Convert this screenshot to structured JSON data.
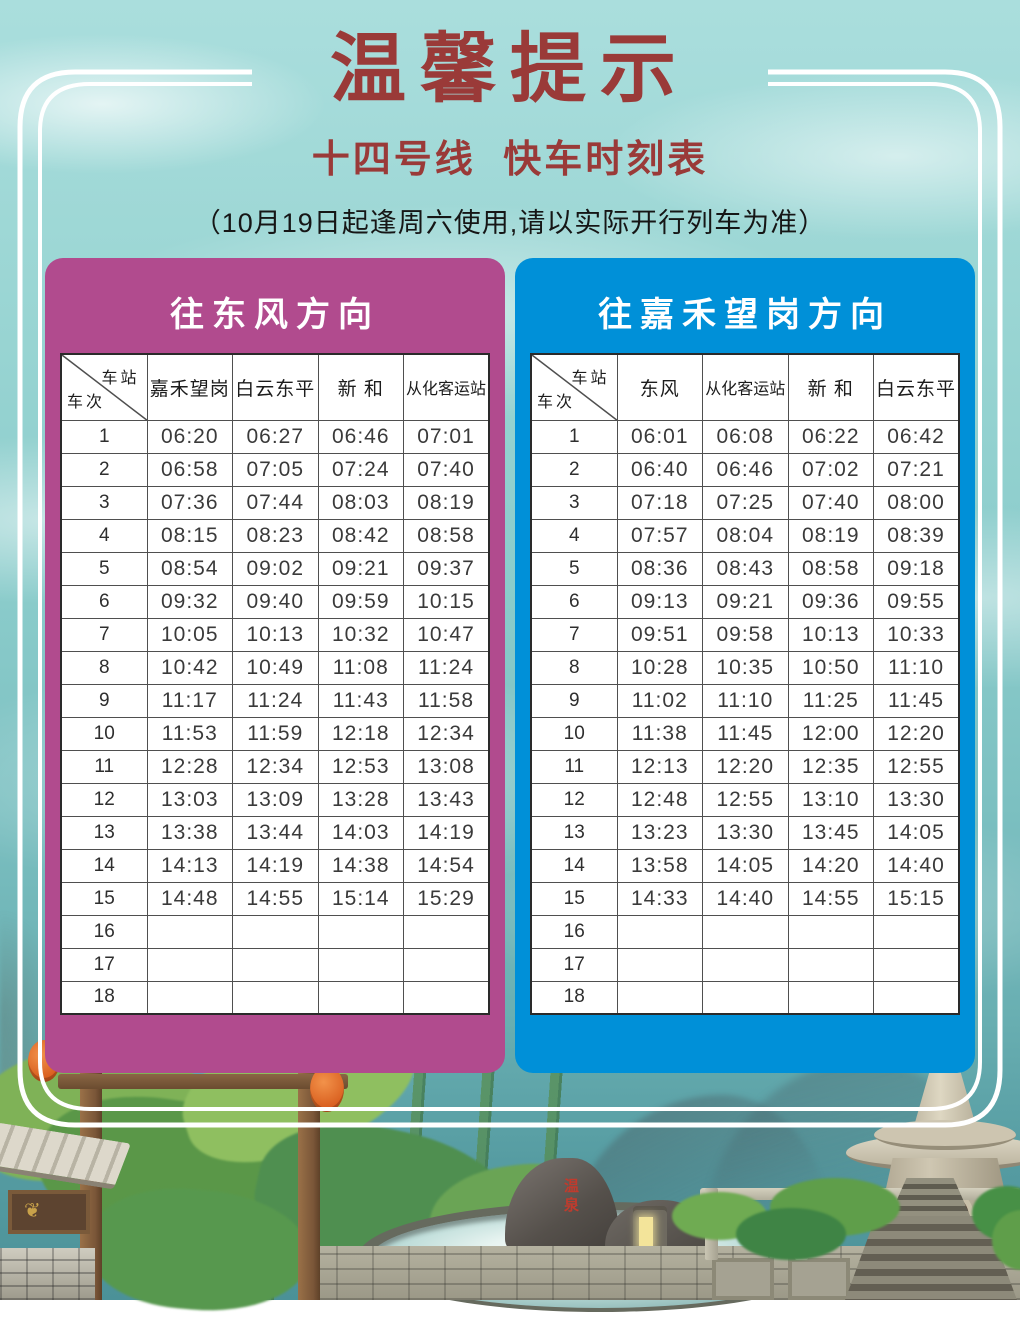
{
  "title": "温馨提示",
  "subtitle": "十四号线 快车时刻表",
  "note": "（10月19日起逢周六使用,请以实际开行列车为准）",
  "colors": {
    "title_red": "#9a3a38",
    "left_panel": "#b14b8e",
    "right_panel": "#0090d8",
    "sky": "#8bcccb"
  },
  "corner_header": {
    "top": "车站",
    "bottom": "车次"
  },
  "illustration": {
    "rock_text": "温泉"
  },
  "tables": [
    {
      "direction": "往东风方向",
      "stations": [
        "嘉禾望岗",
        "白云东平",
        "新 和",
        "从化客运站"
      ],
      "rows": [
        [
          "1",
          "06:20",
          "06:27",
          "06:46",
          "07:01"
        ],
        [
          "2",
          "06:58",
          "07:05",
          "07:24",
          "07:40"
        ],
        [
          "3",
          "07:36",
          "07:44",
          "08:03",
          "08:19"
        ],
        [
          "4",
          "08:15",
          "08:23",
          "08:42",
          "08:58"
        ],
        [
          "5",
          "08:54",
          "09:02",
          "09:21",
          "09:37"
        ],
        [
          "6",
          "09:32",
          "09:40",
          "09:59",
          "10:15"
        ],
        [
          "7",
          "10:05",
          "10:13",
          "10:32",
          "10:47"
        ],
        [
          "8",
          "10:42",
          "10:49",
          "11:08",
          "11:24"
        ],
        [
          "9",
          "11:17",
          "11:24",
          "11:43",
          "11:58"
        ],
        [
          "10",
          "11:53",
          "11:59",
          "12:18",
          "12:34"
        ],
        [
          "11",
          "12:28",
          "12:34",
          "12:53",
          "13:08"
        ],
        [
          "12",
          "13:03",
          "13:09",
          "13:28",
          "13:43"
        ],
        [
          "13",
          "13:38",
          "13:44",
          "14:03",
          "14:19"
        ],
        [
          "14",
          "14:13",
          "14:19",
          "14:38",
          "14:54"
        ],
        [
          "15",
          "14:48",
          "14:55",
          "15:14",
          "15:29"
        ],
        [
          "16",
          "",
          "",
          "",
          ""
        ],
        [
          "17",
          "",
          "",
          "",
          ""
        ],
        [
          "18",
          "",
          "",
          "",
          ""
        ]
      ]
    },
    {
      "direction": "往嘉禾望岗方向",
      "stations": [
        "东风",
        "从化客运站",
        "新 和",
        "白云东平"
      ],
      "rows": [
        [
          "1",
          "06:01",
          "06:08",
          "06:22",
          "06:42"
        ],
        [
          "2",
          "06:40",
          "06:46",
          "07:02",
          "07:21"
        ],
        [
          "3",
          "07:18",
          "07:25",
          "07:40",
          "08:00"
        ],
        [
          "4",
          "07:57",
          "08:04",
          "08:19",
          "08:39"
        ],
        [
          "5",
          "08:36",
          "08:43",
          "08:58",
          "09:18"
        ],
        [
          "6",
          "09:13",
          "09:21",
          "09:36",
          "09:55"
        ],
        [
          "7",
          "09:51",
          "09:58",
          "10:13",
          "10:33"
        ],
        [
          "8",
          "10:28",
          "10:35",
          "10:50",
          "11:10"
        ],
        [
          "9",
          "11:02",
          "11:10",
          "11:25",
          "11:45"
        ],
        [
          "10",
          "11:38",
          "11:45",
          "12:00",
          "12:20"
        ],
        [
          "11",
          "12:13",
          "12:20",
          "12:35",
          "12:55"
        ],
        [
          "12",
          "12:48",
          "12:55",
          "13:10",
          "13:30"
        ],
        [
          "13",
          "13:23",
          "13:30",
          "13:45",
          "14:05"
        ],
        [
          "14",
          "13:58",
          "14:05",
          "14:20",
          "14:40"
        ],
        [
          "15",
          "14:33",
          "14:40",
          "14:55",
          "15:15"
        ],
        [
          "16",
          "",
          "",
          "",
          ""
        ],
        [
          "17",
          "",
          "",
          "",
          ""
        ],
        [
          "18",
          "",
          "",
          "",
          ""
        ]
      ]
    }
  ]
}
